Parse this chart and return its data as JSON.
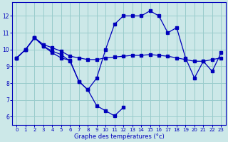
{
  "xlabel": "Graphe des températures (°c)",
  "background_color": "#cce8e8",
  "plot_bg_color": "#cce8e8",
  "line_color": "#0000bb",
  "grid_color": "#99cccc",
  "axis_label_color": "#0000bb",
  "tick_label_color": "#0000bb",
  "ylim": [
    5.5,
    12.8
  ],
  "xlim": [
    -0.5,
    23.5
  ],
  "yticks": [
    6,
    7,
    8,
    9,
    10,
    11,
    12
  ],
  "xticks": [
    0,
    1,
    2,
    3,
    4,
    5,
    6,
    7,
    8,
    9,
    10,
    11,
    12,
    13,
    14,
    15,
    16,
    17,
    18,
    19,
    20,
    21,
    22,
    23
  ],
  "line1_y": [
    9.5,
    10.0,
    10.7,
    10.3,
    10.1,
    9.9,
    9.6,
    9.5,
    9.4,
    9.4,
    9.5,
    9.55,
    9.6,
    9.65,
    9.65,
    9.7,
    9.65,
    9.6,
    9.5,
    9.4,
    9.3,
    9.3,
    9.4,
    9.5
  ],
  "line2_y": [
    9.5,
    10.0,
    10.7,
    10.2,
    9.9,
    9.7,
    9.3,
    8.1,
    7.6,
    6.65,
    6.35,
    6.05,
    6.55,
    null,
    null,
    null,
    null,
    null,
    null,
    null,
    null,
    null,
    null,
    null
  ],
  "line3_y": [
    9.5,
    10.0,
    10.7,
    10.2,
    9.8,
    9.5,
    9.35,
    8.1,
    7.6,
    8.3,
    10.0,
    11.5,
    12.0,
    12.0,
    12.0,
    12.3,
    12.0,
    11.0,
    11.3,
    9.5,
    8.3,
    9.3,
    8.7,
    9.8
  ]
}
